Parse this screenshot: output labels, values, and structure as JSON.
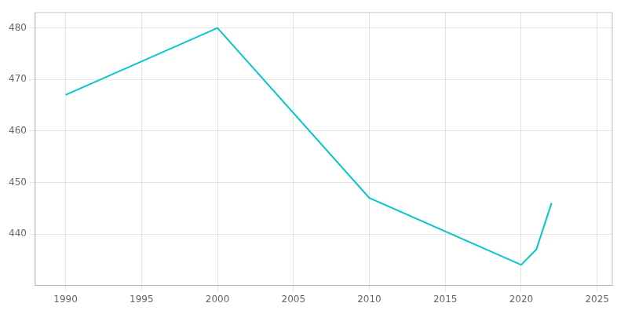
{
  "chart_data": {
    "type": "line",
    "x": [
      1990,
      2000,
      2010,
      2020,
      2021,
      2022
    ],
    "values": [
      467,
      480,
      447,
      434,
      437,
      446
    ],
    "color": "#00c8c8",
    "xlim": [
      1988,
      2026
    ],
    "xticks": [
      1990,
      1995,
      2000,
      2005,
      2010,
      2015,
      2020,
      2025
    ],
    "ylim": [
      430,
      483
    ],
    "yticks": [
      440,
      450,
      460,
      470,
      480
    ],
    "grid": true
  }
}
